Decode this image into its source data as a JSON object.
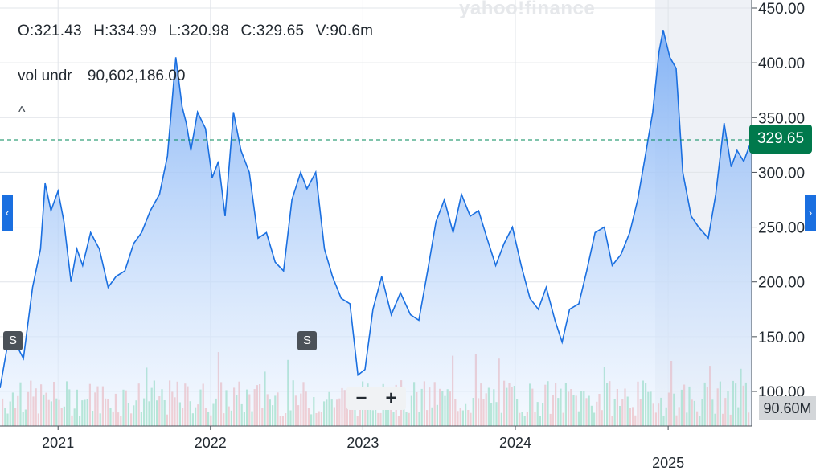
{
  "header": {
    "open": "O:321.43",
    "high": "H:334.99",
    "low": "L:320.98",
    "close": "C:329.65",
    "volume": "V:90.6m",
    "vol_label": "vol undr",
    "vol_value": "90,602,186.00",
    "collapse_glyph": "^"
  },
  "watermark": "yahoo!finance",
  "badges": {
    "split_1": "S",
    "split_2": "S"
  },
  "nav": {
    "left": "‹",
    "right": "›"
  },
  "zoom": {
    "minus": "−",
    "plus": "+"
  },
  "price_tag": "329.65",
  "volume_tag": "90.60M",
  "colors": {
    "line": "#1a6fe0",
    "area_top": "#7fb0f5",
    "area_bottom": "#eef5fe",
    "price_tag_bg": "#00794c",
    "dashed_line": "#008a5a",
    "vol_up": "#3cc685",
    "vol_down": "#f07c7c",
    "highlight_bg": "#eef1f6"
  },
  "chart_data": {
    "type": "area",
    "y_axis_position": "right",
    "yticks": [
      "450.00",
      "400.00",
      "350.00",
      "300.00",
      "250.00",
      "200.00",
      "150.00",
      "100.00"
    ],
    "ylim": [
      90,
      450
    ],
    "xticks": [
      "2021",
      "2022",
      "2023",
      "2024",
      "2025"
    ],
    "xlim": [
      "2020-08-15",
      "2025-07-20"
    ],
    "last_price": 329.65,
    "highlighted_range_start": "2024-12-01",
    "x": [
      "2020-08-15",
      "2020-09-01",
      "2020-09-20",
      "2020-10-10",
      "2020-11-01",
      "2020-11-20",
      "2020-12-01",
      "2020-12-15",
      "2021-01-01",
      "2021-01-15",
      "2021-02-01",
      "2021-02-15",
      "2021-03-01",
      "2021-03-20",
      "2021-04-10",
      "2021-05-01",
      "2021-05-20",
      "2021-06-10",
      "2021-07-01",
      "2021-07-20",
      "2021-08-10",
      "2021-09-01",
      "2021-09-20",
      "2021-10-10",
      "2021-10-25",
      "2021-11-04",
      "2021-11-15",
      "2021-12-01",
      "2021-12-20",
      "2022-01-05",
      "2022-01-20",
      "2022-02-05",
      "2022-02-25",
      "2022-03-15",
      "2022-04-04",
      "2022-04-25",
      "2022-05-15",
      "2022-06-05",
      "2022-06-25",
      "2022-07-15",
      "2022-08-05",
      "2022-08-20",
      "2022-09-10",
      "2022-10-01",
      "2022-10-20",
      "2022-11-10",
      "2022-12-01",
      "2022-12-20",
      "2023-01-06",
      "2023-01-25",
      "2023-02-15",
      "2023-03-10",
      "2023-04-01",
      "2023-04-25",
      "2023-05-15",
      "2023-06-05",
      "2023-06-25",
      "2023-07-15",
      "2023-08-05",
      "2023-08-25",
      "2023-09-15",
      "2023-10-05",
      "2023-10-25",
      "2023-11-15",
      "2023-12-05",
      "2023-12-25",
      "2024-01-15",
      "2024-02-05",
      "2024-02-25",
      "2024-03-15",
      "2024-04-05",
      "2024-04-22",
      "2024-05-10",
      "2024-06-01",
      "2024-06-20",
      "2024-07-10",
      "2024-08-01",
      "2024-08-20",
      "2024-09-10",
      "2024-10-01",
      "2024-10-20",
      "2024-11-05",
      "2024-11-25",
      "2024-12-10",
      "2024-12-20",
      "2025-01-05",
      "2025-01-20",
      "2025-02-05",
      "2025-02-25",
      "2025-03-15",
      "2025-04-07",
      "2025-04-25",
      "2025-05-15",
      "2025-06-01",
      "2025-06-15",
      "2025-07-01",
      "2025-07-20"
    ],
    "close": [
      103,
      140,
      145,
      130,
      195,
      230,
      290,
      265,
      283,
      255,
      200,
      230,
      215,
      245,
      230,
      195,
      205,
      210,
      235,
      245,
      265,
      280,
      315,
      405,
      360,
      345,
      320,
      355,
      340,
      295,
      310,
      260,
      355,
      320,
      300,
      240,
      245,
      218,
      210,
      275,
      300,
      285,
      300,
      230,
      205,
      185,
      180,
      115,
      120,
      175,
      205,
      170,
      190,
      170,
      165,
      210,
      255,
      275,
      245,
      280,
      260,
      265,
      240,
      215,
      235,
      250,
      215,
      185,
      175,
      195,
      165,
      145,
      175,
      180,
      210,
      245,
      250,
      215,
      225,
      245,
      275,
      310,
      355,
      410,
      430,
      405,
      395,
      300,
      260,
      250,
      240,
      280,
      345,
      305,
      320,
      310,
      329.65
    ],
    "volume_seen_as": "bars along the bottom, green up-days / red down-days"
  }
}
